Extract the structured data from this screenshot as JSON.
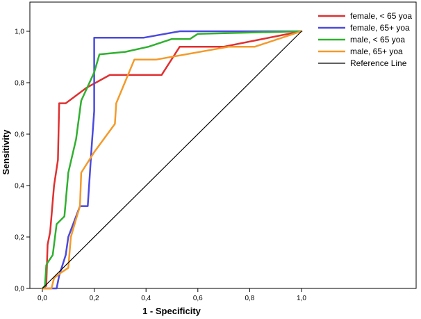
{
  "chart_data": {
    "type": "line",
    "title": "",
    "xlabel": "1 - Specificity",
    "ylabel": "Sensitivity",
    "xlim": [
      0,
      1
    ],
    "ylim": [
      0,
      1
    ],
    "x_ticks": [
      "0,0",
      "0,2",
      "0,4",
      "0,6",
      "0,8",
      "1,0"
    ],
    "y_ticks": [
      "0,0",
      "0,2",
      "0,4",
      "0,6",
      "0,8",
      "1,0"
    ],
    "grid": false,
    "legend_position": "top-right",
    "series": [
      {
        "name": "female, < 65 yoa",
        "color": "#e03030",
        "points": [
          [
            0,
            0
          ],
          [
            0.015,
            0.01
          ],
          [
            0.02,
            0.17
          ],
          [
            0.03,
            0.22
          ],
          [
            0.045,
            0.4
          ],
          [
            0.06,
            0.5
          ],
          [
            0.065,
            0.72
          ],
          [
            0.09,
            0.72
          ],
          [
            0.17,
            0.78
          ],
          [
            0.26,
            0.83
          ],
          [
            0.46,
            0.83
          ],
          [
            0.53,
            0.94
          ],
          [
            0.7,
            0.94
          ],
          [
            1,
            1
          ]
        ]
      },
      {
        "name": "female, 65+ yoa",
        "color": "#4a4ae0",
        "points": [
          [
            0,
            0
          ],
          [
            0.055,
            0
          ],
          [
            0.065,
            0.05
          ],
          [
            0.09,
            0.13
          ],
          [
            0.1,
            0.2
          ],
          [
            0.145,
            0.32
          ],
          [
            0.175,
            0.32
          ],
          [
            0.19,
            0.55
          ],
          [
            0.2,
            0.69
          ],
          [
            0.2,
            0.975
          ],
          [
            0.39,
            0.975
          ],
          [
            0.53,
            1
          ],
          [
            1,
            1
          ]
        ]
      },
      {
        "name": "male, < 65 yoa",
        "color": "#30b030",
        "points": [
          [
            0,
            0
          ],
          [
            0.01,
            0.01
          ],
          [
            0.015,
            0.09
          ],
          [
            0.02,
            0.1
          ],
          [
            0.04,
            0.13
          ],
          [
            0.055,
            0.25
          ],
          [
            0.085,
            0.28
          ],
          [
            0.1,
            0.45
          ],
          [
            0.13,
            0.58
          ],
          [
            0.15,
            0.73
          ],
          [
            0.2,
            0.84
          ],
          [
            0.22,
            0.91
          ],
          [
            0.32,
            0.92
          ],
          [
            0.41,
            0.94
          ],
          [
            0.5,
            0.97
          ],
          [
            0.57,
            0.97
          ],
          [
            0.6,
            0.99
          ],
          [
            1,
            1
          ]
        ]
      },
      {
        "name": "male, 65+ yoa",
        "color": "#f39a2a",
        "points": [
          [
            0,
            0
          ],
          [
            0.035,
            0
          ],
          [
            0.045,
            0.04
          ],
          [
            0.07,
            0.06
          ],
          [
            0.1,
            0.08
          ],
          [
            0.11,
            0.2
          ],
          [
            0.13,
            0.27
          ],
          [
            0.145,
            0.32
          ],
          [
            0.15,
            0.45
          ],
          [
            0.2,
            0.53
          ],
          [
            0.28,
            0.64
          ],
          [
            0.285,
            0.72
          ],
          [
            0.355,
            0.89
          ],
          [
            0.44,
            0.89
          ],
          [
            0.72,
            0.94
          ],
          [
            0.82,
            0.94
          ],
          [
            1,
            1
          ]
        ]
      },
      {
        "name": "Reference Line",
        "color": "#000000",
        "points": [
          [
            0,
            0
          ],
          [
            1,
            1
          ]
        ]
      }
    ]
  }
}
